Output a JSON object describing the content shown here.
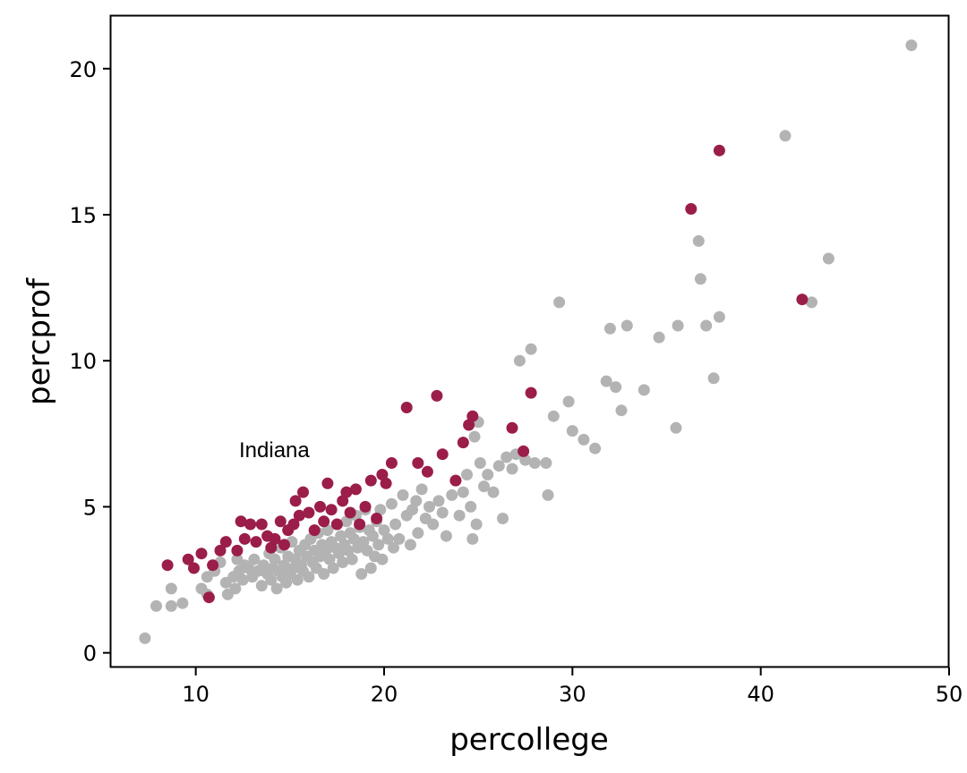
{
  "chart_data": {
    "type": "scatter",
    "title": "",
    "xlabel": "percollege",
    "ylabel": "percprof",
    "xlim": [
      5.5,
      50
    ],
    "ylim": [
      -0.5,
      21.8
    ],
    "xticks": [
      10,
      20,
      30,
      40,
      50
    ],
    "yticks": [
      0,
      5,
      10,
      15,
      20
    ],
    "grid": false,
    "colors": {
      "highlight": "#9b1d4a",
      "other": "#b3b3b3"
    },
    "annotation": {
      "text": "Indiana",
      "x": 12.3,
      "y": 6.7
    },
    "series": [
      {
        "group": "other",
        "points": [
          [
            7.3,
            0.5
          ],
          [
            7.9,
            1.6
          ],
          [
            8.7,
            1.6
          ],
          [
            8.7,
            2.2
          ],
          [
            9.3,
            1.7
          ],
          [
            10.3,
            2.2
          ],
          [
            10.6,
            2.0
          ],
          [
            10.6,
            2.6
          ],
          [
            11.0,
            2.8
          ],
          [
            11.3,
            3.1
          ],
          [
            11.6,
            2.4
          ],
          [
            11.7,
            2.0
          ],
          [
            12.0,
            2.6
          ],
          [
            12.1,
            2.2
          ],
          [
            12.2,
            3.2
          ],
          [
            12.3,
            2.8
          ],
          [
            12.5,
            2.5
          ],
          [
            12.6,
            3.0
          ],
          [
            12.8,
            2.9
          ],
          [
            13.0,
            2.6
          ],
          [
            13.1,
            3.2
          ],
          [
            13.3,
            2.8
          ],
          [
            13.5,
            2.3
          ],
          [
            13.6,
            3.0
          ],
          [
            13.8,
            2.7
          ],
          [
            13.9,
            3.4
          ],
          [
            14.0,
            2.5
          ],
          [
            14.1,
            2.9
          ],
          [
            14.2,
            3.2
          ],
          [
            14.3,
            2.2
          ],
          [
            14.4,
            2.8
          ],
          [
            14.5,
            3.6
          ],
          [
            14.6,
            2.6
          ],
          [
            14.7,
            3.0
          ],
          [
            14.8,
            2.4
          ],
          [
            14.9,
            3.3
          ],
          [
            15.0,
            2.7
          ],
          [
            15.1,
            3.8
          ],
          [
            15.2,
            2.9
          ],
          [
            15.3,
            3.2
          ],
          [
            15.4,
            2.5
          ],
          [
            15.5,
            3.5
          ],
          [
            15.6,
            3.0
          ],
          [
            15.7,
            2.8
          ],
          [
            15.8,
            3.7
          ],
          [
            15.9,
            3.3
          ],
          [
            16.0,
            2.6
          ],
          [
            16.1,
            3.9
          ],
          [
            16.2,
            3.1
          ],
          [
            16.3,
            3.5
          ],
          [
            16.4,
            2.9
          ],
          [
            16.5,
            4.1
          ],
          [
            16.6,
            3.3
          ],
          [
            16.7,
            3.7
          ],
          [
            16.8,
            2.7
          ],
          [
            16.9,
            3.5
          ],
          [
            17.0,
            4.2
          ],
          [
            17.1,
            3.2
          ],
          [
            17.2,
            3.8
          ],
          [
            17.3,
            2.9
          ],
          [
            17.4,
            3.6
          ],
          [
            17.5,
            4.4
          ],
          [
            17.6,
            3.4
          ],
          [
            17.7,
            4.0
          ],
          [
            17.8,
            3.1
          ],
          [
            17.9,
            3.7
          ],
          [
            18.0,
            4.5
          ],
          [
            18.1,
            3.5
          ],
          [
            18.2,
            4.1
          ],
          [
            18.3,
            3.2
          ],
          [
            18.4,
            3.9
          ],
          [
            18.5,
            4.7
          ],
          [
            18.6,
            3.6
          ],
          [
            18.7,
            4.3
          ],
          [
            18.8,
            2.7
          ],
          [
            18.9,
            3.8
          ],
          [
            19.0,
            4.9
          ],
          [
            19.1,
            3.5
          ],
          [
            19.2,
            4.2
          ],
          [
            19.3,
            2.9
          ],
          [
            19.4,
            4.0
          ],
          [
            19.5,
            3.3
          ],
          [
            19.6,
            4.5
          ],
          [
            19.7,
            3.7
          ],
          [
            19.8,
            4.9
          ],
          [
            19.9,
            3.2
          ],
          [
            20.0,
            4.2
          ],
          [
            20.2,
            3.9
          ],
          [
            20.4,
            5.1
          ],
          [
            20.5,
            3.6
          ],
          [
            20.6,
            4.4
          ],
          [
            20.8,
            3.9
          ],
          [
            21.0,
            5.4
          ],
          [
            21.2,
            4.7
          ],
          [
            21.4,
            3.7
          ],
          [
            21.5,
            4.9
          ],
          [
            21.7,
            5.2
          ],
          [
            21.8,
            4.1
          ],
          [
            22.0,
            5.6
          ],
          [
            22.2,
            4.6
          ],
          [
            22.4,
            5.0
          ],
          [
            22.6,
            4.4
          ],
          [
            22.9,
            5.2
          ],
          [
            23.1,
            4.8
          ],
          [
            23.3,
            4.0
          ],
          [
            23.6,
            5.4
          ],
          [
            23.8,
            5.9
          ],
          [
            24.0,
            4.7
          ],
          [
            24.2,
            5.5
          ],
          [
            24.4,
            6.1
          ],
          [
            24.6,
            5.0
          ],
          [
            24.7,
            3.9
          ],
          [
            24.8,
            7.4
          ],
          [
            24.9,
            4.4
          ],
          [
            25.0,
            7.9
          ],
          [
            25.1,
            6.5
          ],
          [
            25.3,
            5.7
          ],
          [
            25.5,
            6.1
          ],
          [
            25.8,
            5.5
          ],
          [
            26.1,
            6.4
          ],
          [
            26.3,
            4.6
          ],
          [
            26.5,
            6.7
          ],
          [
            26.8,
            6.3
          ],
          [
            27.0,
            6.8
          ],
          [
            27.2,
            10.0
          ],
          [
            27.5,
            6.6
          ],
          [
            27.8,
            10.4
          ],
          [
            28.0,
            6.5
          ],
          [
            28.6,
            6.5
          ],
          [
            28.7,
            5.4
          ],
          [
            29.0,
            8.1
          ],
          [
            29.3,
            12.0
          ],
          [
            29.8,
            8.6
          ],
          [
            30.0,
            7.6
          ],
          [
            30.6,
            7.3
          ],
          [
            31.2,
            7.0
          ],
          [
            31.8,
            9.3
          ],
          [
            32.0,
            11.1
          ],
          [
            32.3,
            9.1
          ],
          [
            32.6,
            8.3
          ],
          [
            32.9,
            11.2
          ],
          [
            33.8,
            9.0
          ],
          [
            34.6,
            10.8
          ],
          [
            35.5,
            7.7
          ],
          [
            35.6,
            11.2
          ],
          [
            36.7,
            14.1
          ],
          [
            36.8,
            12.8
          ],
          [
            37.1,
            11.2
          ],
          [
            37.5,
            9.4
          ],
          [
            37.8,
            11.5
          ],
          [
            41.3,
            17.7
          ],
          [
            42.7,
            12.0
          ],
          [
            43.6,
            13.5
          ],
          [
            48.0,
            20.8
          ]
        ]
      },
      {
        "group": "highlight",
        "points": [
          [
            8.5,
            3.0
          ],
          [
            9.6,
            3.2
          ],
          [
            9.9,
            2.9
          ],
          [
            10.3,
            3.4
          ],
          [
            10.7,
            1.9
          ],
          [
            10.9,
            3.0
          ],
          [
            11.3,
            3.5
          ],
          [
            11.6,
            3.8
          ],
          [
            12.2,
            3.5
          ],
          [
            12.4,
            4.5
          ],
          [
            12.6,
            3.9
          ],
          [
            12.9,
            4.4
          ],
          [
            13.2,
            3.8
          ],
          [
            13.5,
            4.4
          ],
          [
            13.8,
            4.0
          ],
          [
            14.0,
            3.6
          ],
          [
            14.2,
            3.9
          ],
          [
            14.5,
            4.5
          ],
          [
            14.7,
            3.7
          ],
          [
            14.9,
            4.2
          ],
          [
            15.2,
            4.4
          ],
          [
            15.3,
            5.2
          ],
          [
            15.5,
            4.7
          ],
          [
            15.7,
            5.5
          ],
          [
            16.0,
            4.8
          ],
          [
            16.3,
            4.2
          ],
          [
            16.6,
            5.0
          ],
          [
            16.8,
            4.5
          ],
          [
            17.0,
            5.8
          ],
          [
            17.2,
            4.9
          ],
          [
            17.5,
            4.4
          ],
          [
            17.8,
            5.2
          ],
          [
            18.0,
            5.5
          ],
          [
            18.2,
            4.8
          ],
          [
            18.5,
            5.6
          ],
          [
            18.7,
            4.4
          ],
          [
            19.0,
            5.0
          ],
          [
            19.3,
            5.9
          ],
          [
            19.6,
            4.6
          ],
          [
            19.9,
            6.1
          ],
          [
            20.1,
            5.8
          ],
          [
            20.4,
            6.5
          ],
          [
            21.2,
            8.4
          ],
          [
            21.8,
            6.5
          ],
          [
            22.3,
            6.2
          ],
          [
            22.8,
            8.8
          ],
          [
            23.1,
            6.8
          ],
          [
            23.8,
            5.9
          ],
          [
            24.2,
            7.2
          ],
          [
            24.5,
            7.8
          ],
          [
            24.7,
            8.1
          ],
          [
            26.8,
            7.7
          ],
          [
            27.4,
            6.9
          ],
          [
            27.8,
            8.9
          ],
          [
            36.3,
            15.2
          ],
          [
            37.8,
            17.2
          ],
          [
            42.2,
            12.1
          ]
        ]
      }
    ]
  }
}
